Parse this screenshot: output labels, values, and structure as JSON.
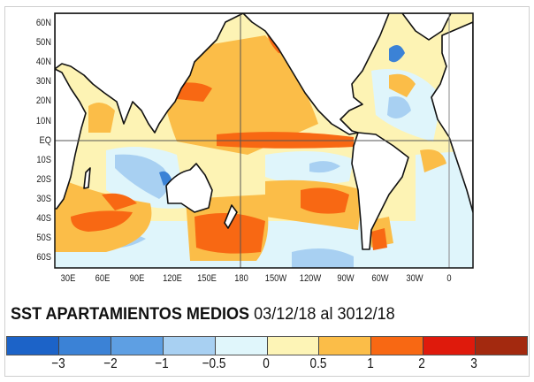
{
  "title": {
    "main": "SST APARTAMIENTOS MEDIOS",
    "dates": "03/12/18 al 3012/18"
  },
  "lat_labels": [
    "60N",
    "50N",
    "40N",
    "30N",
    "20N",
    "10N",
    "EQ",
    "10S",
    "20S",
    "30S",
    "40S",
    "50S",
    "60S"
  ],
  "lon_labels": [
    "30E",
    "60E",
    "90E",
    "120E",
    "150E",
    "180",
    "150W",
    "120W",
    "90W",
    "60W",
    "30W",
    "0"
  ],
  "colorbar": {
    "colors": [
      "#1c63c8",
      "#3b82d6",
      "#5e9fe3",
      "#a8d0f2",
      "#e0f6fb",
      "#fdf4b6",
      "#fbbd48",
      "#f86813",
      "#df1a0c",
      "#a3290f"
    ],
    "labels": [
      "−3",
      "−2",
      "−1",
      "−0.5",
      "0",
      "0.5",
      "1",
      "2",
      "3"
    ]
  }
}
